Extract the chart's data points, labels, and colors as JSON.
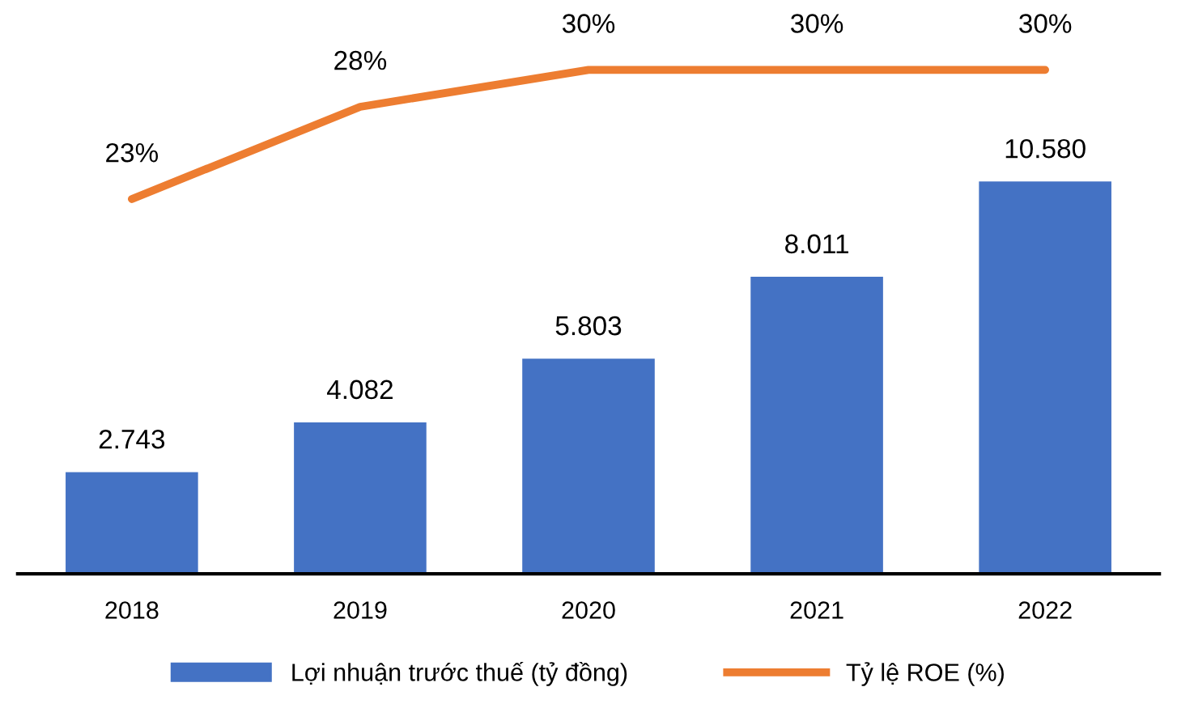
{
  "chart_data": {
    "type": "bar",
    "categories": [
      "2018",
      "2019",
      "2020",
      "2021",
      "2022"
    ],
    "series": [
      {
        "name": "Lợi nhuận trước thuế (tỷ đồng)",
        "color": "#4472c4",
        "values": [
          2743,
          4082,
          5803,
          8011,
          10580
        ],
        "value_labels": [
          "2.743",
          "4.082",
          "5.803",
          "8.011",
          "10.580"
        ]
      },
      {
        "name": "Tỷ lệ ROE (%)",
        "type": "line",
        "axis": "y2",
        "color": "#ed7d31",
        "values": [
          23,
          28,
          30,
          30,
          30
        ],
        "value_labels": [
          "23%",
          "28%",
          "30%",
          "30%",
          "30%"
        ]
      }
    ],
    "legend": "bottom",
    "grid": false,
    "marker": "none",
    "line_style": "solid"
  }
}
